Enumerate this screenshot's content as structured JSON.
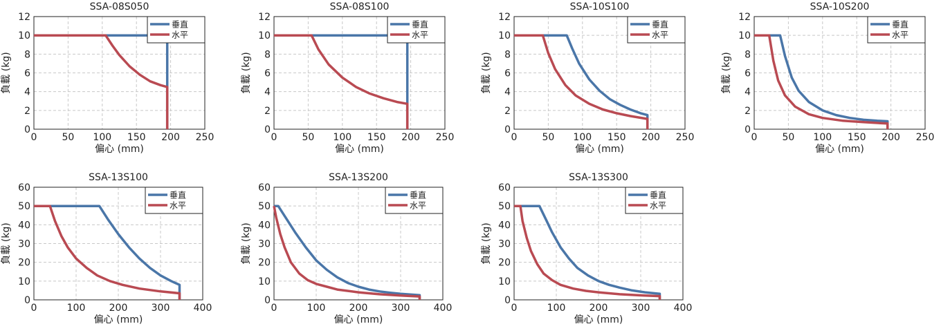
{
  "colors": {
    "vertical": "#4a76a8",
    "horizontal": "#b94a52",
    "grid": "#c8c8c8",
    "axis": "#222222"
  },
  "chart_data": [
    {
      "type": "line",
      "title": "SSA-08S050",
      "xlabel": "偏心 (mm)",
      "ylabel": "負載 (kg)",
      "xlim": [
        0,
        250
      ],
      "ylim": [
        0,
        12
      ],
      "xticks": [
        0,
        50,
        100,
        150,
        200,
        250
      ],
      "yticks": [
        0,
        2,
        4,
        6,
        8,
        10,
        12
      ],
      "grid": true,
      "legend": "top-right",
      "series": [
        {
          "name": "垂直",
          "color": "#4a76a8",
          "points": [
            [
              0,
              10
            ],
            [
              195,
              10
            ],
            [
              195,
              0
            ]
          ]
        },
        {
          "name": "水平",
          "color": "#b94a52",
          "points": [
            [
              0,
              10
            ],
            [
              105,
              10
            ],
            [
              115,
              8.9
            ],
            [
              125,
              7.9
            ],
            [
              140,
              6.7
            ],
            [
              155,
              5.8
            ],
            [
              170,
              5.1
            ],
            [
              185,
              4.7
            ],
            [
              195,
              4.5
            ],
            [
              195,
              0
            ]
          ]
        }
      ]
    },
    {
      "type": "line",
      "title": "SSA-08S100",
      "xlabel": "偏心 (mm)",
      "ylabel": "負載 (kg)",
      "xlim": [
        0,
        250
      ],
      "ylim": [
        0,
        12
      ],
      "xticks": [
        0,
        50,
        100,
        150,
        200,
        250
      ],
      "yticks": [
        0,
        2,
        4,
        6,
        8,
        10,
        12
      ],
      "grid": true,
      "legend": "top-right",
      "series": [
        {
          "name": "垂直",
          "color": "#4a76a8",
          "points": [
            [
              0,
              10
            ],
            [
              195,
              10
            ],
            [
              195,
              0
            ]
          ]
        },
        {
          "name": "水平",
          "color": "#b94a52",
          "points": [
            [
              0,
              10
            ],
            [
              55,
              10
            ],
            [
              65,
              8.5
            ],
            [
              80,
              6.9
            ],
            [
              100,
              5.5
            ],
            [
              120,
              4.5
            ],
            [
              140,
              3.8
            ],
            [
              160,
              3.3
            ],
            [
              180,
              2.9
            ],
            [
              195,
              2.7
            ],
            [
              195,
              0
            ]
          ]
        }
      ]
    },
    {
      "type": "line",
      "title": "SSA-10S100",
      "xlabel": "偏心 (mm)",
      "ylabel": "負載 (kg)",
      "xlim": [
        0,
        250
      ],
      "ylim": [
        0,
        12
      ],
      "xticks": [
        0,
        50,
        100,
        150,
        200,
        250
      ],
      "yticks": [
        0,
        2,
        4,
        6,
        8,
        10,
        12
      ],
      "grid": true,
      "legend": "top-right",
      "series": [
        {
          "name": "垂直",
          "color": "#4a76a8",
          "points": [
            [
              0,
              10
            ],
            [
              77,
              10
            ],
            [
              85,
              8.6
            ],
            [
              95,
              7
            ],
            [
              110,
              5.3
            ],
            [
              125,
              4.1
            ],
            [
              140,
              3.2
            ],
            [
              155,
              2.6
            ],
            [
              170,
              2.1
            ],
            [
              185,
              1.7
            ],
            [
              195,
              1.5
            ],
            [
              195,
              0
            ]
          ]
        },
        {
          "name": "水平",
          "color": "#b94a52",
          "points": [
            [
              0,
              10
            ],
            [
              42,
              10
            ],
            [
              50,
              8.1
            ],
            [
              60,
              6.4
            ],
            [
              75,
              4.7
            ],
            [
              90,
              3.6
            ],
            [
              110,
              2.7
            ],
            [
              130,
              2.1
            ],
            [
              150,
              1.7
            ],
            [
              170,
              1.4
            ],
            [
              195,
              1.1
            ],
            [
              195,
              0
            ]
          ]
        }
      ]
    },
    {
      "type": "line",
      "title": "SSA-10S200",
      "xlabel": "偏心 (mm)",
      "ylabel": "負載 (kg)",
      "xlim": [
        0,
        250
      ],
      "ylim": [
        0,
        12
      ],
      "xticks": [
        0,
        50,
        100,
        150,
        200,
        250
      ],
      "yticks": [
        0,
        2,
        4,
        6,
        8,
        10,
        12
      ],
      "grid": true,
      "legend": "top-right",
      "series": [
        {
          "name": "垂直",
          "color": "#4a76a8",
          "points": [
            [
              0,
              10
            ],
            [
              38,
              10
            ],
            [
              45,
              7.8
            ],
            [
              55,
              5.5
            ],
            [
              65,
              4.1
            ],
            [
              80,
              2.9
            ],
            [
              100,
              2
            ],
            [
              120,
              1.5
            ],
            [
              140,
              1.2
            ],
            [
              160,
              1
            ],
            [
              180,
              0.9
            ],
            [
              195,
              0.85
            ],
            [
              195,
              0
            ]
          ]
        },
        {
          "name": "水平",
          "color": "#b94a52",
          "points": [
            [
              0,
              10
            ],
            [
              22,
              10
            ],
            [
              28,
              7.3
            ],
            [
              35,
              5.2
            ],
            [
              45,
              3.6
            ],
            [
              60,
              2.4
            ],
            [
              80,
              1.6
            ],
            [
              100,
              1.2
            ],
            [
              130,
              0.9
            ],
            [
              160,
              0.75
            ],
            [
              195,
              0.6
            ],
            [
              195,
              0
            ]
          ]
        }
      ]
    },
    {
      "type": "line",
      "title": "SSA-13S100",
      "xlabel": "偏心 (mm)",
      "ylabel": "負載 (kg)",
      "xlim": [
        0,
        400
      ],
      "ylim": [
        0,
        60
      ],
      "xticks": [
        0,
        100,
        200,
        300,
        400
      ],
      "yticks": [
        0,
        10,
        20,
        30,
        40,
        50,
        60
      ],
      "grid": true,
      "legend": "top-right",
      "series": [
        {
          "name": "垂直",
          "color": "#4a76a8",
          "points": [
            [
              0,
              50
            ],
            [
              155,
              50
            ],
            [
              175,
              43
            ],
            [
              200,
              35
            ],
            [
              225,
              28
            ],
            [
              250,
              22
            ],
            [
              275,
              17
            ],
            [
              300,
              13
            ],
            [
              325,
              10
            ],
            [
              345,
              8
            ],
            [
              345,
              0
            ]
          ]
        },
        {
          "name": "水平",
          "color": "#b94a52",
          "points": [
            [
              0,
              50
            ],
            [
              38,
              50
            ],
            [
              50,
              42
            ],
            [
              65,
              34
            ],
            [
              80,
              28
            ],
            [
              100,
              22
            ],
            [
              125,
              17
            ],
            [
              150,
              13
            ],
            [
              180,
              10
            ],
            [
              210,
              8
            ],
            [
              250,
              6
            ],
            [
              300,
              4.5
            ],
            [
              345,
              3.5
            ],
            [
              345,
              0
            ]
          ]
        }
      ]
    },
    {
      "type": "line",
      "title": "SSA-13S200",
      "xlabel": "偏心 (mm)",
      "ylabel": "負載 (kg)",
      "xlim": [
        0,
        400
      ],
      "ylim": [
        0,
        60
      ],
      "xticks": [
        0,
        100,
        200,
        300,
        400
      ],
      "yticks": [
        0,
        10,
        20,
        30,
        40,
        50,
        60
      ],
      "grid": true,
      "legend": "top-right",
      "series": [
        {
          "name": "垂直",
          "color": "#4a76a8",
          "points": [
            [
              0,
              50
            ],
            [
              10,
              50
            ],
            [
              30,
              43
            ],
            [
              50,
              36
            ],
            [
              75,
              28
            ],
            [
              100,
              21
            ],
            [
              125,
              16
            ],
            [
              150,
              12
            ],
            [
              175,
              9
            ],
            [
              200,
              7
            ],
            [
              225,
              5.5
            ],
            [
              250,
              4.5
            ],
            [
              275,
              3.8
            ],
            [
              300,
              3.2
            ],
            [
              345,
              2.5
            ],
            [
              345,
              0
            ]
          ]
        },
        {
          "name": "水平",
          "color": "#b94a52",
          "points": [
            [
              0,
              50
            ],
            [
              5,
              44
            ],
            [
              15,
              35
            ],
            [
              25,
              28
            ],
            [
              40,
              20
            ],
            [
              60,
              14
            ],
            [
              80,
              10.5
            ],
            [
              100,
              8.5
            ],
            [
              125,
              7
            ],
            [
              150,
              5.5
            ],
            [
              200,
              4
            ],
            [
              250,
              3
            ],
            [
              300,
              2.3
            ],
            [
              345,
              1.8
            ],
            [
              345,
              0
            ]
          ]
        }
      ]
    },
    {
      "type": "line",
      "title": "SSA-13S300",
      "xlabel": "偏心 (mm)",
      "ylabel": "負載 (kg)",
      "xlim": [
        0,
        400
      ],
      "ylim": [
        0,
        60
      ],
      "xticks": [
        0,
        100,
        200,
        300,
        400
      ],
      "yticks": [
        0,
        10,
        20,
        30,
        40,
        50,
        60
      ],
      "grid": true,
      "legend": "top-right",
      "series": [
        {
          "name": "垂直",
          "color": "#4a76a8",
          "points": [
            [
              0,
              50
            ],
            [
              60,
              50
            ],
            [
              75,
              43
            ],
            [
              90,
              36
            ],
            [
              110,
              28
            ],
            [
              130,
              22
            ],
            [
              150,
              17
            ],
            [
              175,
              13
            ],
            [
              200,
              10
            ],
            [
              225,
              8
            ],
            [
              250,
              6.5
            ],
            [
              280,
              5
            ],
            [
              310,
              4
            ],
            [
              345,
              3.2
            ],
            [
              345,
              0
            ]
          ]
        },
        {
          "name": "水平",
          "color": "#b94a52",
          "points": [
            [
              0,
              50
            ],
            [
              15,
              50
            ],
            [
              20,
              42
            ],
            [
              30,
              33
            ],
            [
              40,
              26
            ],
            [
              55,
              19
            ],
            [
              70,
              14
            ],
            [
              90,
              10.5
            ],
            [
              110,
              8
            ],
            [
              140,
              6
            ],
            [
              170,
              4.8
            ],
            [
              200,
              4
            ],
            [
              250,
              3
            ],
            [
              300,
              2.4
            ],
            [
              345,
              2
            ],
            [
              345,
              0
            ]
          ]
        }
      ]
    }
  ]
}
